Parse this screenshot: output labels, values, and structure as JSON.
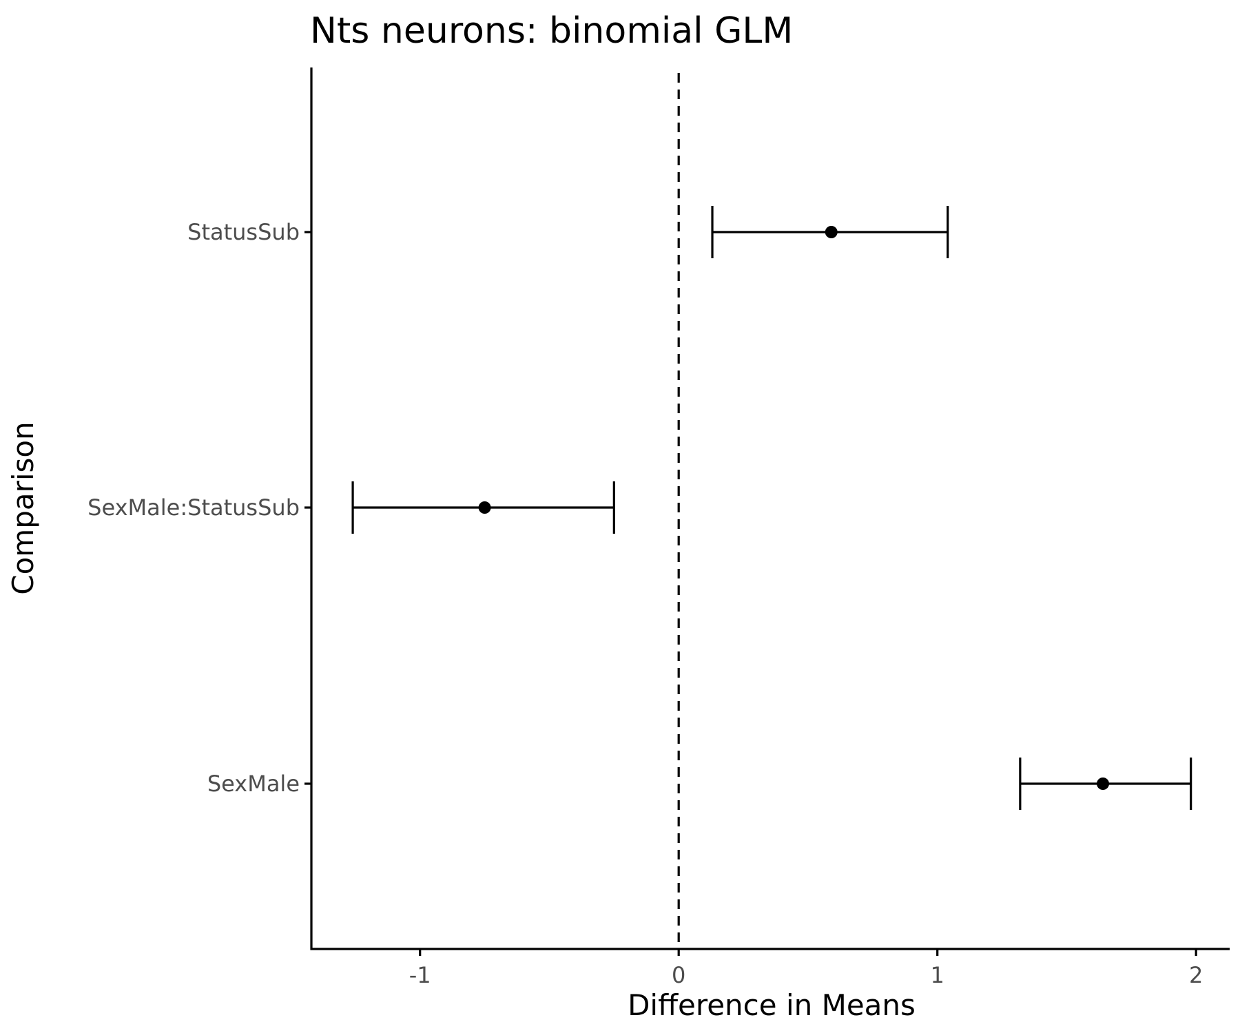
{
  "chart_data": {
    "type": "scatter",
    "subtype": "dot-and-whisker",
    "title": "Nts neurons: binomial GLM",
    "xlabel": "Difference in Means",
    "ylabel": "Comparison",
    "xlim": [
      -1.42,
      2.13
    ],
    "xticks": [
      -1,
      0,
      1,
      2
    ],
    "xtick_labels": [
      "-1",
      "0",
      "1",
      "2"
    ],
    "categories": [
      "StatusSub",
      "SexMale:StatusSub",
      "SexMale"
    ],
    "estimates": [
      {
        "term": "StatusSub",
        "estimate": 0.59,
        "ci_low": 0.13,
        "ci_high": 1.04
      },
      {
        "term": "SexMale:StatusSub",
        "estimate": -0.75,
        "ci_low": -1.26,
        "ci_high": -0.25
      },
      {
        "term": "SexMale",
        "estimate": 1.64,
        "ci_low": 1.32,
        "ci_high": 1.98
      }
    ],
    "reference_line": {
      "x": 0,
      "style": "dashed"
    },
    "grid": false,
    "legend": "none",
    "colors": {
      "marks": "#000000",
      "tick_text": "#4d4d4d",
      "background": "#ffffff"
    }
  }
}
